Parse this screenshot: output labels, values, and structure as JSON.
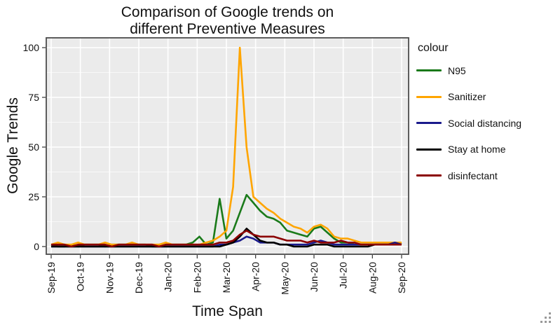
{
  "title": {
    "line1": "Comparison of Google trends on",
    "line2": "different Preventive Measures"
  },
  "x_axis": {
    "label": "Time Span",
    "tick_labels": [
      "Sep-19",
      "Oct-19",
      "Nov-19",
      "Dec-19",
      "Jan-20",
      "Feb-20",
      "Mar-20",
      "Apr-20",
      "May-20",
      "Jun-20",
      "Jul-20",
      "Aug-20",
      "Sep-20"
    ]
  },
  "y_axis": {
    "label": "Google Trends",
    "tick_labels": [
      "0",
      "25",
      "50",
      "75",
      "100"
    ]
  },
  "legend": {
    "title": "colour",
    "position": "right"
  },
  "colors": {
    "panel_background": "#EBEBEB",
    "grid_major": "#FFFFFF",
    "grid_minor": "rgba(255,255,255,0.65)",
    "panel_border": "#4D4D4D",
    "tick_mark": "#333333",
    "text": "#111111"
  },
  "chart_data": {
    "type": "line",
    "title": "Comparison of Google trends on different Preventive Measures",
    "xlabel": "Time Span",
    "ylabel": "Google Trends",
    "ylim": [
      0,
      100
    ],
    "y_ticks": [
      0,
      25,
      50,
      75,
      100
    ],
    "y_minor_ticks": [
      12.5,
      37.5,
      62.5,
      87.5
    ],
    "x_tick_labels": [
      "Sep-19",
      "Oct-19",
      "Nov-19",
      "Dec-19",
      "Jan-20",
      "Feb-20",
      "Mar-20",
      "Apr-20",
      "May-20",
      "Jun-20",
      "Jul-20",
      "Aug-20",
      "Sep-20"
    ],
    "x_sampling": "weekly, 53 points from Sep-2019 to Sep-2020",
    "grid": true,
    "legend_title": "colour",
    "legend_position": "right",
    "series": [
      {
        "name": "N95",
        "color": "#1A7A1A",
        "values": [
          1,
          0,
          0,
          1,
          0,
          1,
          1,
          1,
          0,
          1,
          1,
          1,
          1,
          1,
          1,
          0,
          0,
          1,
          1,
          1,
          1,
          2,
          5,
          1,
          2,
          24,
          4,
          8,
          17,
          26,
          22,
          18,
          15,
          14,
          12,
          8,
          7,
          6,
          5,
          9,
          10,
          7,
          4,
          2,
          2,
          1,
          1,
          1,
          1,
          1,
          1,
          1,
          2
        ]
      },
      {
        "name": "Sanitizer",
        "color": "#FFA500",
        "values": [
          1,
          2,
          1,
          1,
          2,
          1,
          1,
          1,
          2,
          1,
          1,
          1,
          2,
          1,
          1,
          1,
          1,
          2,
          1,
          1,
          1,
          1,
          1,
          2,
          3,
          5,
          8,
          30,
          100,
          50,
          25,
          22,
          19,
          17,
          14,
          12,
          10,
          9,
          7,
          10,
          11,
          9,
          5,
          4,
          4,
          3,
          2,
          2,
          2,
          2,
          2,
          2,
          2
        ]
      },
      {
        "name": "Social distancing",
        "color": "#1A1A8C",
        "values": [
          0,
          0,
          0,
          0,
          0,
          0,
          0,
          0,
          0,
          0,
          0,
          0,
          0,
          0,
          0,
          0,
          0,
          0,
          0,
          0,
          0,
          0,
          0,
          0,
          0,
          1,
          1,
          2,
          3,
          5,
          4,
          2,
          2,
          2,
          1,
          1,
          1,
          1,
          1,
          2,
          3,
          2,
          1,
          1,
          1,
          1,
          1,
          1,
          1,
          1,
          1,
          2,
          1
        ]
      },
      {
        "name": "Stay at home",
        "color": "#000000",
        "values": [
          0,
          0,
          0,
          0,
          0,
          0,
          0,
          0,
          0,
          0,
          0,
          0,
          0,
          0,
          0,
          0,
          0,
          0,
          0,
          0,
          0,
          0,
          0,
          0,
          0,
          0,
          1,
          2,
          5,
          9,
          6,
          3,
          2,
          2,
          1,
          1,
          0,
          0,
          0,
          1,
          1,
          1,
          0,
          0,
          0,
          0,
          0,
          0,
          1,
          1,
          1,
          1,
          1
        ]
      },
      {
        "name": "disinfectant",
        "color": "#8B0000",
        "values": [
          1,
          1,
          1,
          0,
          1,
          1,
          1,
          1,
          1,
          0,
          1,
          1,
          1,
          1,
          1,
          1,
          0,
          1,
          1,
          1,
          1,
          1,
          1,
          1,
          1,
          2,
          2,
          3,
          6,
          8,
          6,
          5,
          5,
          5,
          4,
          3,
          3,
          3,
          2,
          3,
          2,
          2,
          2,
          3,
          2,
          2,
          1,
          1,
          1,
          1,
          1,
          1,
          1
        ]
      }
    ]
  }
}
